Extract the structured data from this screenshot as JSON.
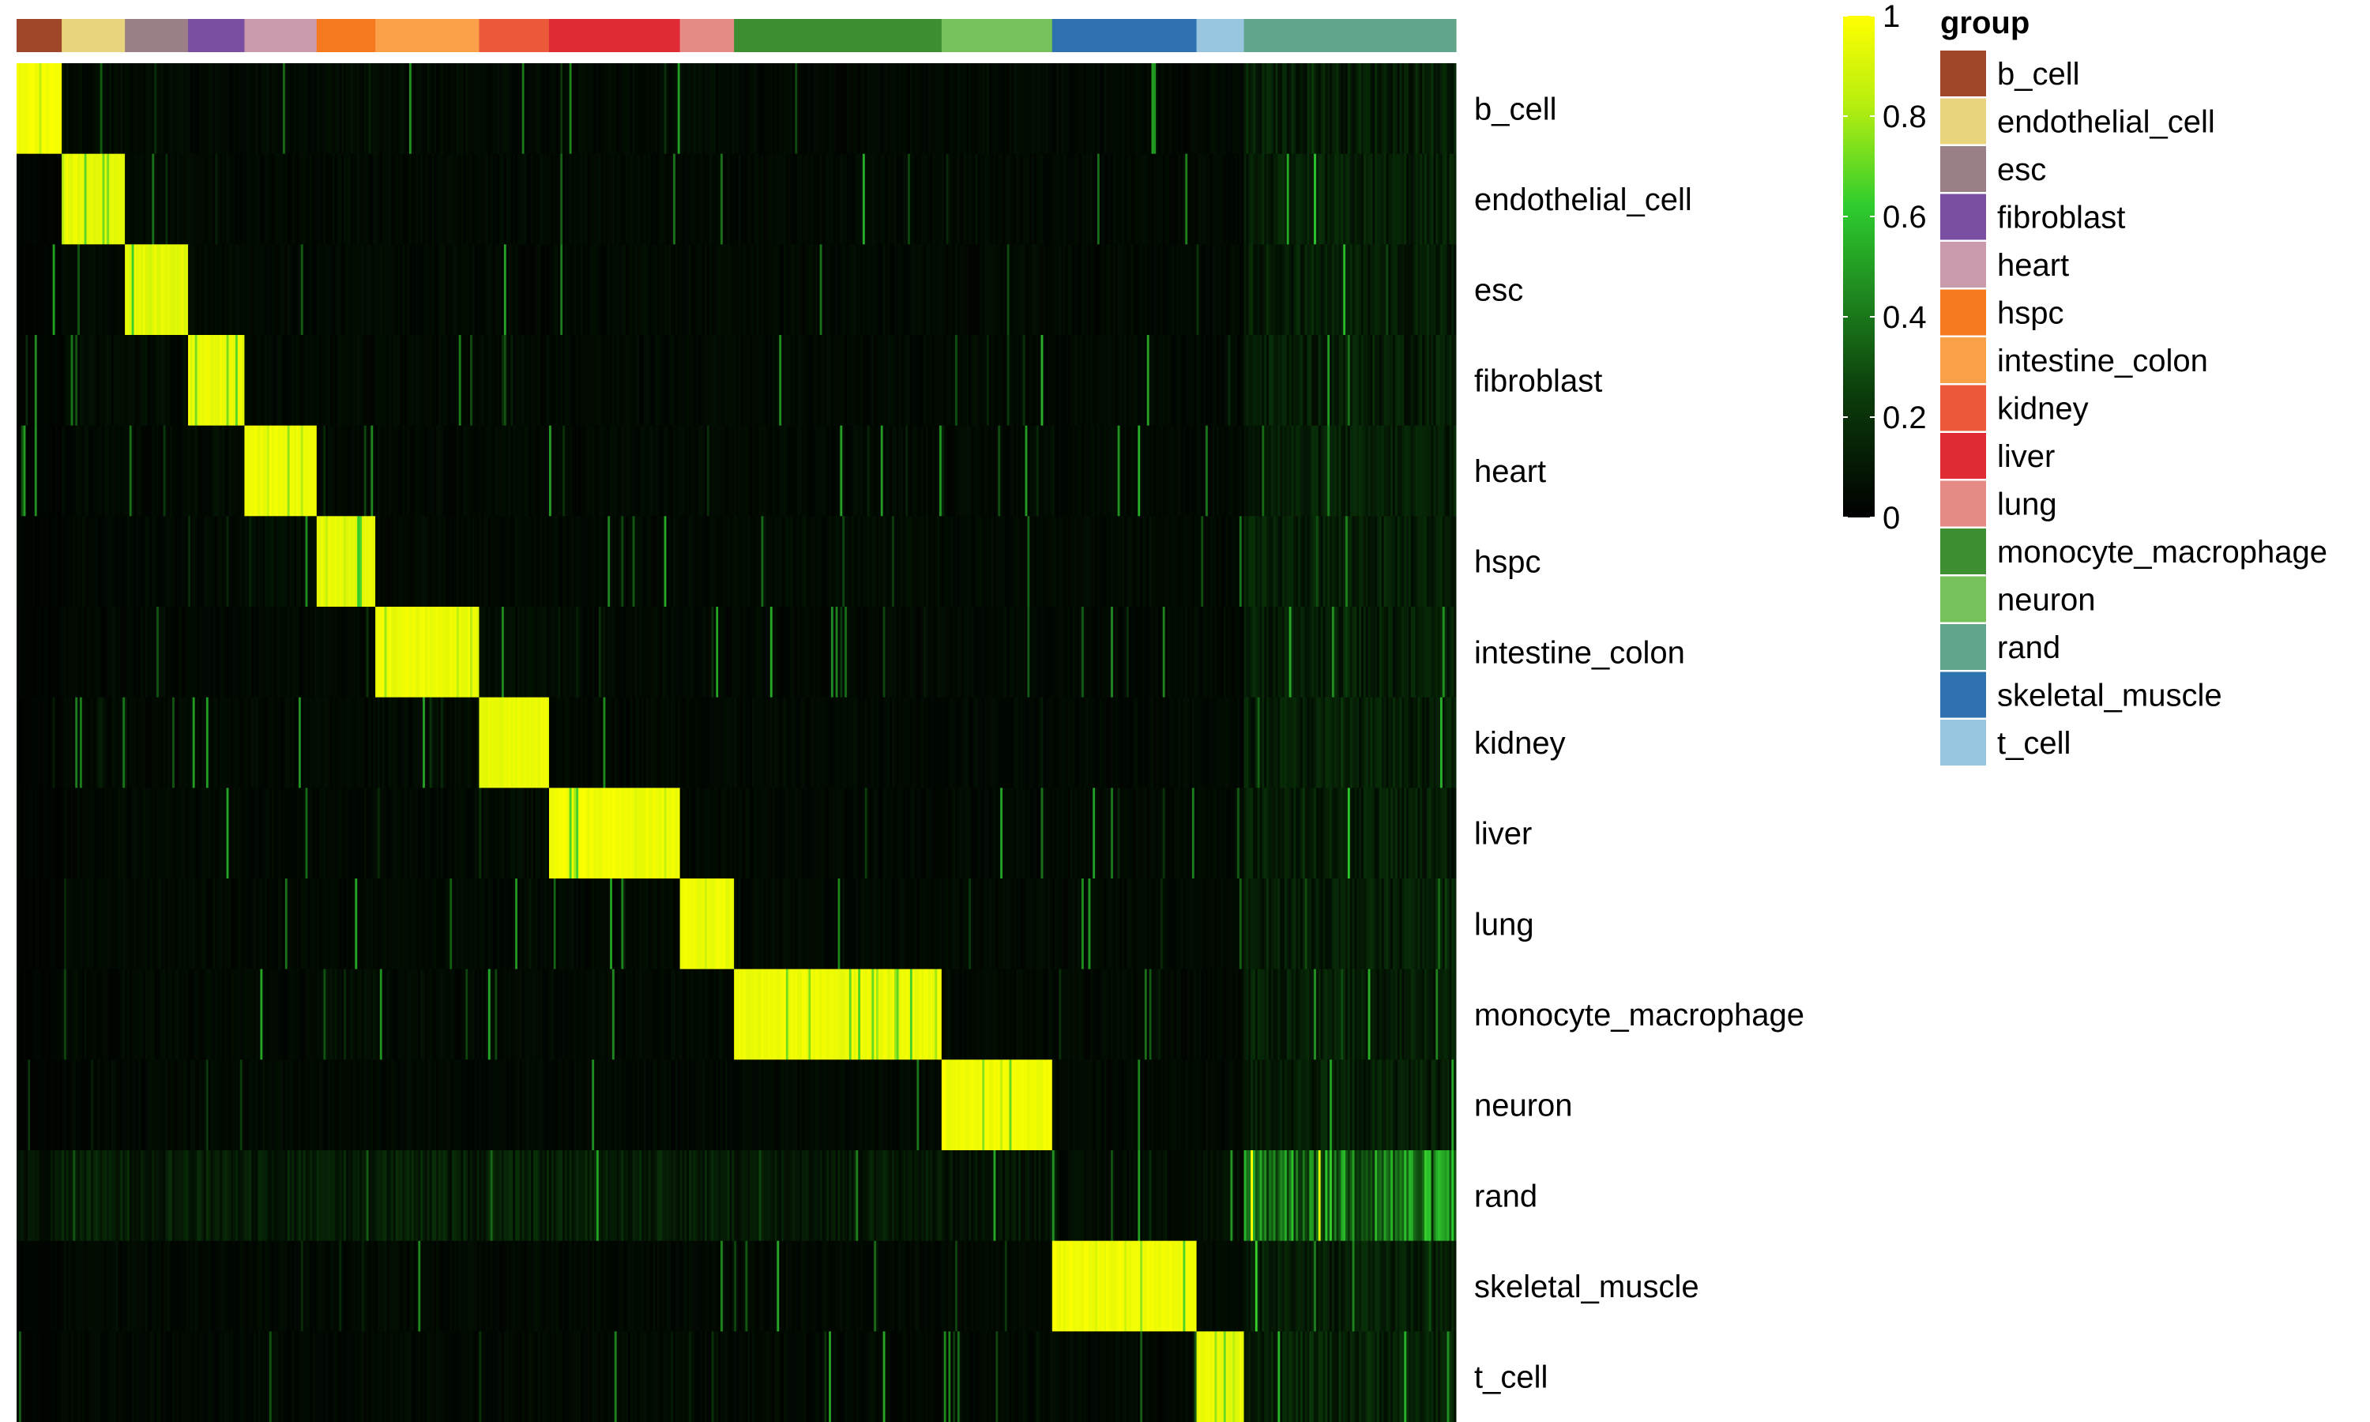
{
  "chart_data": {
    "type": "heatmap",
    "title": "",
    "xlabel": "",
    "ylabel": "",
    "rows": [
      "b_cell",
      "endothelial_cell",
      "esc",
      "fibroblast",
      "heart",
      "hspc",
      "intestine_colon",
      "kidney",
      "liver",
      "lung",
      "monocyte_macrophage",
      "neuron",
      "rand",
      "skeletal_muscle",
      "t_cell"
    ],
    "column_groups": [
      {
        "group": "b_cell",
        "n_cells": 20
      },
      {
        "group": "endothelial_cell",
        "n_cells": 28
      },
      {
        "group": "esc",
        "n_cells": 28
      },
      {
        "group": "fibroblast",
        "n_cells": 25
      },
      {
        "group": "heart",
        "n_cells": 32
      },
      {
        "group": "hspc",
        "n_cells": 26
      },
      {
        "group": "intestine_colon",
        "n_cells": 46
      },
      {
        "group": "kidney",
        "n_cells": 31
      },
      {
        "group": "liver",
        "n_cells": 58
      },
      {
        "group": "lung",
        "n_cells": 24
      },
      {
        "group": "monocyte_macrophage",
        "n_cells": 92
      },
      {
        "group": "neuron",
        "n_cells": 49
      },
      {
        "group": "skeletal_muscle",
        "n_cells": 64
      },
      {
        "group": "t_cell",
        "n_cells": 21
      },
      {
        "group": "rand",
        "n_cells": 94
      }
    ],
    "values_description_matrix": [
      [
        1.0,
        0.05,
        0.05,
        0.04,
        0.04,
        0.05,
        0.05,
        0.04,
        0.04,
        0.05,
        0.04,
        0.04,
        0.04,
        0.04,
        0.12
      ],
      [
        0.02,
        0.97,
        0.04,
        0.04,
        0.04,
        0.04,
        0.04,
        0.04,
        0.04,
        0.04,
        0.04,
        0.04,
        0.04,
        0.04,
        0.12
      ],
      [
        0.02,
        0.04,
        0.96,
        0.04,
        0.04,
        0.04,
        0.04,
        0.04,
        0.04,
        0.04,
        0.04,
        0.04,
        0.04,
        0.04,
        0.12
      ],
      [
        0.02,
        0.05,
        0.05,
        0.97,
        0.04,
        0.04,
        0.04,
        0.04,
        0.04,
        0.04,
        0.04,
        0.04,
        0.04,
        0.04,
        0.12
      ],
      [
        0.02,
        0.04,
        0.04,
        0.05,
        0.98,
        0.04,
        0.04,
        0.04,
        0.04,
        0.04,
        0.04,
        0.04,
        0.04,
        0.04,
        0.12
      ],
      [
        0.02,
        0.04,
        0.04,
        0.04,
        0.05,
        0.96,
        0.04,
        0.04,
        0.04,
        0.04,
        0.05,
        0.04,
        0.04,
        0.04,
        0.12
      ],
      [
        0.02,
        0.04,
        0.04,
        0.04,
        0.04,
        0.04,
        0.98,
        0.05,
        0.04,
        0.04,
        0.04,
        0.04,
        0.04,
        0.04,
        0.12
      ],
      [
        0.02,
        0.04,
        0.04,
        0.04,
        0.04,
        0.04,
        0.05,
        0.97,
        0.04,
        0.04,
        0.04,
        0.04,
        0.04,
        0.04,
        0.12
      ],
      [
        0.02,
        0.04,
        0.04,
        0.04,
        0.04,
        0.04,
        0.04,
        0.05,
        0.99,
        0.04,
        0.04,
        0.04,
        0.04,
        0.04,
        0.12
      ],
      [
        0.02,
        0.04,
        0.04,
        0.04,
        0.04,
        0.04,
        0.04,
        0.04,
        0.04,
        0.98,
        0.04,
        0.04,
        0.04,
        0.04,
        0.12
      ],
      [
        0.02,
        0.04,
        0.04,
        0.04,
        0.04,
        0.06,
        0.04,
        0.04,
        0.04,
        0.04,
        0.98,
        0.04,
        0.04,
        0.04,
        0.12
      ],
      [
        0.02,
        0.04,
        0.04,
        0.04,
        0.04,
        0.04,
        0.04,
        0.04,
        0.04,
        0.04,
        0.04,
        0.99,
        0.04,
        0.04,
        0.12
      ],
      [
        0.08,
        0.12,
        0.12,
        0.12,
        0.12,
        0.12,
        0.12,
        0.12,
        0.12,
        0.12,
        0.1,
        0.08,
        0.05,
        0.06,
        0.4
      ],
      [
        0.02,
        0.04,
        0.04,
        0.04,
        0.04,
        0.04,
        0.04,
        0.04,
        0.04,
        0.04,
        0.04,
        0.04,
        0.99,
        0.04,
        0.12
      ],
      [
        0.02,
        0.04,
        0.04,
        0.04,
        0.04,
        0.04,
        0.04,
        0.04,
        0.04,
        0.04,
        0.04,
        0.04,
        0.04,
        0.97,
        0.14
      ]
    ],
    "colorbar": {
      "min": 0,
      "max": 1,
      "ticks": [
        "0",
        "0.2",
        "0.4",
        "0.6",
        "0.8",
        "1"
      ],
      "colors": [
        "#000000",
        "#1f8a1f",
        "#2ecc2e",
        "#c8f000",
        "#ffff00"
      ]
    },
    "legend": {
      "title": "group",
      "placement": "right",
      "items": [
        {
          "label": "b_cell",
          "color": "#a0472a"
        },
        {
          "label": "endothelial_cell",
          "color": "#e8d47c"
        },
        {
          "label": "esc",
          "color": "#9b7f86"
        },
        {
          "label": "fibroblast",
          "color": "#7a4fa3"
        },
        {
          "label": "heart",
          "color": "#c99aab"
        },
        {
          "label": "hspc",
          "color": "#f5791f"
        },
        {
          "label": "intestine_colon",
          "color": "#f9a049"
        },
        {
          "label": "kidney",
          "color": "#eb5a3b"
        },
        {
          "label": "liver",
          "color": "#e02a34"
        },
        {
          "label": "lung",
          "color": "#e68a85"
        },
        {
          "label": "monocyte_macrophage",
          "color": "#3e8f32"
        },
        {
          "label": "neuron",
          "color": "#77c15a"
        },
        {
          "label": "rand",
          "color": "#62a58b"
        },
        {
          "label": "skeletal_muscle",
          "color": "#2e72b0"
        },
        {
          "label": "t_cell",
          "color": "#98c6df"
        }
      ]
    }
  }
}
